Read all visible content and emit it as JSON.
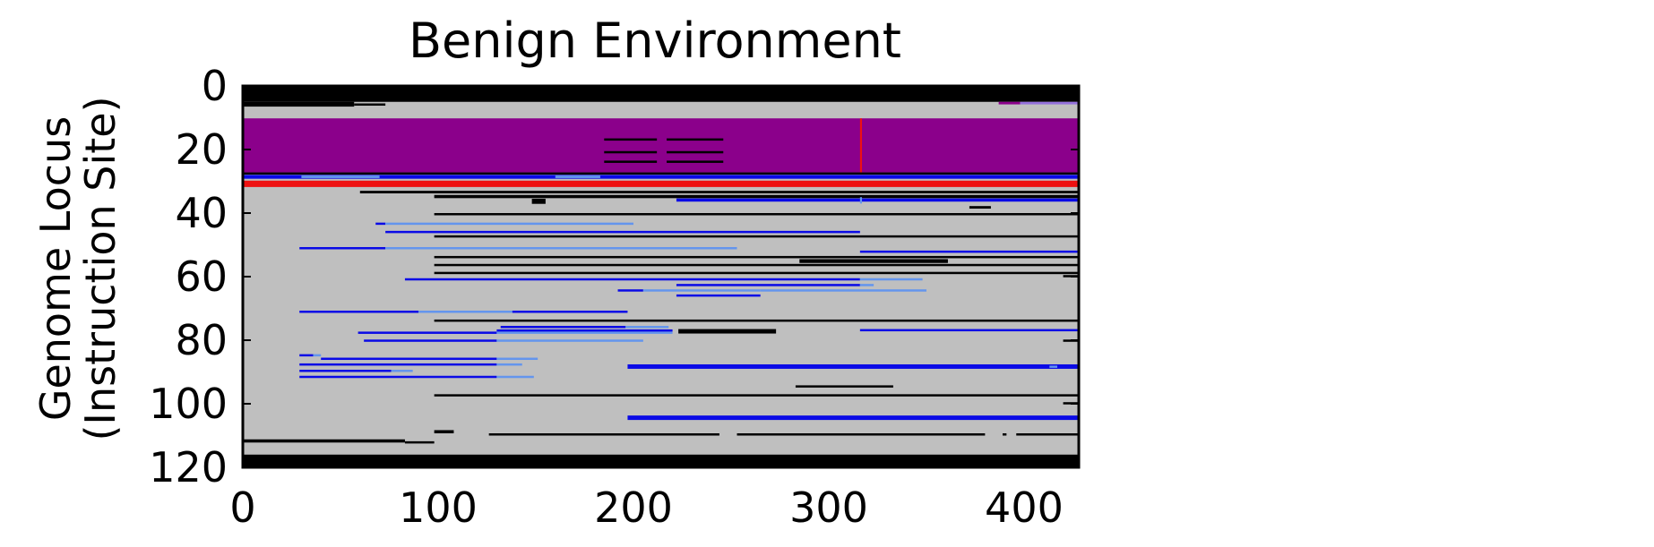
{
  "chart_data": {
    "type": "heatmap",
    "title": "Benign Environment",
    "ylabel_lines": [
      "Genome Locus",
      "(Instruction Site)"
    ],
    "xlabel": "",
    "xlim": [
      0,
      428
    ],
    "ylim": [
      120,
      0
    ],
    "y_inverted": true,
    "xticks": [
      "0",
      "100",
      "200",
      "300",
      "400"
    ],
    "xtick_values": [
      0,
      100,
      200,
      300,
      400
    ],
    "yticks": [
      "0",
      "20",
      "40",
      "60",
      "80",
      "100",
      "120"
    ],
    "ytick_values": [
      0,
      20,
      40,
      60,
      80,
      100,
      120
    ],
    "grid": false,
    "colors": {
      "background": "#bfbfbf",
      "black": "#000000",
      "purple": "#8b008b",
      "red": "#ee1111",
      "blue": "#0a0ae6",
      "lightblue": "#6495ed",
      "lightpurple": "#9370db"
    },
    "segments": [
      {
        "c": "black",
        "x0": 0,
        "x1": 428,
        "y": 0,
        "h": 5
      },
      {
        "c": "black",
        "x0": 0,
        "x1": 428,
        "y": 116,
        "h": 4
      },
      {
        "c": "black",
        "x0": 0,
        "x1": 57,
        "y": 5,
        "h": 1.5
      },
      {
        "c": "black",
        "x0": 57,
        "x1": 73,
        "y": 5.5,
        "h": 0.6
      },
      {
        "c": "black",
        "x0": 320,
        "x1": 428,
        "y": 1.5,
        "h": 0.6
      },
      {
        "c": "purple",
        "x0": 0,
        "x1": 428,
        "y": 10.2,
        "h": 17
      },
      {
        "c": "black",
        "x0": 185,
        "x1": 212,
        "y": 16.5,
        "h": 0.7
      },
      {
        "c": "black",
        "x0": 217,
        "x1": 246,
        "y": 16.5,
        "h": 0.7
      },
      {
        "c": "black",
        "x0": 185,
        "x1": 212,
        "y": 20.5,
        "h": 0.7
      },
      {
        "c": "black",
        "x0": 217,
        "x1": 246,
        "y": 20.5,
        "h": 0.7
      },
      {
        "c": "black",
        "x0": 185,
        "x1": 212,
        "y": 23.5,
        "h": 0.7
      },
      {
        "c": "black",
        "x0": 217,
        "x1": 246,
        "y": 23.5,
        "h": 0.7
      },
      {
        "c": "red",
        "x0": 316,
        "x1": 317,
        "y": 10.2,
        "h": 17
      },
      {
        "c": "purple",
        "x0": 387,
        "x1": 398,
        "y": 5,
        "h": 0.8
      },
      {
        "c": "lightpurple",
        "x0": 398,
        "x1": 428,
        "y": 5,
        "h": 0.8
      },
      {
        "c": "black",
        "x0": 0,
        "x1": 428,
        "y": 27.2,
        "h": 0.7
      },
      {
        "c": "blue",
        "x0": 0,
        "x1": 428,
        "y": 28,
        "h": 1.2
      },
      {
        "c": "lightblue",
        "x0": 30,
        "x1": 70,
        "y": 28.2,
        "h": 0.8
      },
      {
        "c": "lightblue",
        "x0": 160,
        "x1": 183,
        "y": 28.2,
        "h": 0.8
      },
      {
        "c": "red",
        "x0": 0,
        "x1": 428,
        "y": 29.8,
        "h": 2
      },
      {
        "c": "black",
        "x0": 60,
        "x1": 428,
        "y": 33,
        "h": 0.8
      },
      {
        "c": "black",
        "x0": 98,
        "x1": 428,
        "y": 34.3,
        "h": 1
      },
      {
        "c": "blue",
        "x0": 222,
        "x1": 428,
        "y": 35.4,
        "h": 1
      },
      {
        "c": "black",
        "x0": 148,
        "x1": 155,
        "y": 35.5,
        "h": 1.6
      },
      {
        "c": "black",
        "x0": 372,
        "x1": 383,
        "y": 37.8,
        "h": 0.8
      },
      {
        "c": "black",
        "x0": 98,
        "x1": 428,
        "y": 40,
        "h": 0.7
      },
      {
        "c": "blue",
        "x0": 68,
        "x1": 73,
        "y": 43,
        "h": 0.6
      },
      {
        "c": "lightblue",
        "x0": 73,
        "x1": 200,
        "y": 43,
        "h": 0.6
      },
      {
        "c": "blue",
        "x0": 73,
        "x1": 316,
        "y": 45.6,
        "h": 0.7
      },
      {
        "c": "black",
        "x0": 98,
        "x1": 428,
        "y": 47,
        "h": 0.7
      },
      {
        "c": "blue",
        "x0": 29,
        "x1": 73,
        "y": 50.7,
        "h": 0.7
      },
      {
        "c": "lightblue",
        "x0": 73,
        "x1": 253,
        "y": 50.7,
        "h": 0.7
      },
      {
        "c": "blue",
        "x0": 316,
        "x1": 428,
        "y": 51.8,
        "h": 0.7
      },
      {
        "c": "black",
        "x0": 98,
        "x1": 428,
        "y": 53.5,
        "h": 0.6
      },
      {
        "c": "black",
        "x0": 285,
        "x1": 361,
        "y": 54.5,
        "h": 1.2
      },
      {
        "c": "black",
        "x0": 98,
        "x1": 428,
        "y": 56,
        "h": 0.6
      },
      {
        "c": "black",
        "x0": 98,
        "x1": 428,
        "y": 58.5,
        "h": 0.6
      },
      {
        "c": "blue",
        "x0": 83,
        "x1": 316,
        "y": 60.5,
        "h": 0.7
      },
      {
        "c": "lightblue",
        "x0": 316,
        "x1": 348,
        "y": 60.5,
        "h": 0.7
      },
      {
        "c": "black",
        "x0": 420,
        "x1": 428,
        "y": 59.5,
        "h": 0.6
      },
      {
        "c": "blue",
        "x0": 222,
        "x1": 316,
        "y": 62.3,
        "h": 0.7
      },
      {
        "c": "lightblue",
        "x0": 316,
        "x1": 323,
        "y": 62.3,
        "h": 0.7
      },
      {
        "c": "blue",
        "x0": 192,
        "x1": 205,
        "y": 64,
        "h": 0.7
      },
      {
        "c": "lightblue",
        "x0": 205,
        "x1": 265,
        "y": 64,
        "h": 0.7
      },
      {
        "c": "lightblue",
        "x0": 265,
        "x1": 350,
        "y": 64,
        "h": 0.7
      },
      {
        "c": "blue",
        "x0": 222,
        "x1": 265,
        "y": 65.6,
        "h": 0.7
      },
      {
        "c": "blue",
        "x0": 29,
        "x1": 90,
        "y": 70.7,
        "h": 0.7
      },
      {
        "c": "lightblue",
        "x0": 90,
        "x1": 138,
        "y": 70.7,
        "h": 0.7
      },
      {
        "c": "blue",
        "x0": 138,
        "x1": 197,
        "y": 70.7,
        "h": 0.7
      },
      {
        "c": "black",
        "x0": 98,
        "x1": 428,
        "y": 73.5,
        "h": 0.6
      },
      {
        "c": "blue",
        "x0": 132,
        "x1": 196,
        "y": 75.5,
        "h": 0.7
      },
      {
        "c": "lightblue",
        "x0": 196,
        "x1": 218,
        "y": 75.5,
        "h": 0.7
      },
      {
        "c": "blue",
        "x0": 59,
        "x1": 130,
        "y": 77.3,
        "h": 0.7
      },
      {
        "c": "lightblue",
        "x0": 130,
        "x1": 220,
        "y": 77.3,
        "h": 0.7
      },
      {
        "c": "blue",
        "x0": 130,
        "x1": 220,
        "y": 76.6,
        "h": 0.6
      },
      {
        "c": "black",
        "x0": 223,
        "x1": 273,
        "y": 76.5,
        "h": 1.4
      },
      {
        "c": "blue",
        "x0": 316,
        "x1": 428,
        "y": 76.5,
        "h": 0.7
      },
      {
        "c": "blue",
        "x0": 62,
        "x1": 130,
        "y": 79.8,
        "h": 0.6
      },
      {
        "c": "lightblue",
        "x0": 130,
        "x1": 205,
        "y": 79.8,
        "h": 0.6
      },
      {
        "c": "black",
        "x0": 420,
        "x1": 428,
        "y": 79.8,
        "h": 0.6
      },
      {
        "c": "blue",
        "x0": 29,
        "x1": 36,
        "y": 84.4,
        "h": 0.6
      },
      {
        "c": "lightblue",
        "x0": 36,
        "x1": 40,
        "y": 84.4,
        "h": 0.6
      },
      {
        "c": "blue",
        "x0": 40,
        "x1": 130,
        "y": 85.5,
        "h": 0.7
      },
      {
        "c": "lightblue",
        "x0": 130,
        "x1": 151,
        "y": 85.5,
        "h": 0.7
      },
      {
        "c": "blue",
        "x0": 29,
        "x1": 130,
        "y": 87.3,
        "h": 0.7
      },
      {
        "c": "lightblue",
        "x0": 130,
        "x1": 143,
        "y": 87.3,
        "h": 0.7
      },
      {
        "c": "blue",
        "x0": 197,
        "x1": 428,
        "y": 87.6,
        "h": 1.4
      },
      {
        "c": "lightblue",
        "x0": 413,
        "x1": 417,
        "y": 88,
        "h": 0.7
      },
      {
        "c": "blue",
        "x0": 29,
        "x1": 76,
        "y": 89.3,
        "h": 0.7
      },
      {
        "c": "lightblue",
        "x0": 76,
        "x1": 87,
        "y": 89.3,
        "h": 0.7
      },
      {
        "c": "blue",
        "x0": 29,
        "x1": 130,
        "y": 91.2,
        "h": 0.7
      },
      {
        "c": "lightblue",
        "x0": 130,
        "x1": 149,
        "y": 91.2,
        "h": 0.7
      },
      {
        "c": "black",
        "x0": 283,
        "x1": 333,
        "y": 94.2,
        "h": 0.7
      },
      {
        "c": "black",
        "x0": 98,
        "x1": 428,
        "y": 97,
        "h": 0.6
      },
      {
        "c": "black",
        "x0": 420,
        "x1": 428,
        "y": 99.5,
        "h": 0.6
      },
      {
        "c": "blue",
        "x0": 197,
        "x1": 428,
        "y": 103.7,
        "h": 1.4
      },
      {
        "c": "black",
        "x0": 98,
        "x1": 108,
        "y": 108.3,
        "h": 1
      },
      {
        "c": "black",
        "x0": 126,
        "x1": 244,
        "y": 109.3,
        "h": 0.6
      },
      {
        "c": "black",
        "x0": 253,
        "x1": 380,
        "y": 109.3,
        "h": 0.6
      },
      {
        "c": "black",
        "x0": 389,
        "x1": 391,
        "y": 109.3,
        "h": 0.6
      },
      {
        "c": "black",
        "x0": 396,
        "x1": 428,
        "y": 109.3,
        "h": 0.6
      },
      {
        "c": "black",
        "x0": 0,
        "x1": 83,
        "y": 111.2,
        "h": 1
      },
      {
        "c": "black",
        "x0": 83,
        "x1": 98,
        "y": 111.8,
        "h": 0.6
      },
      {
        "c": "lightblue",
        "x0": 316,
        "x1": 317,
        "y": 35,
        "h": 2
      }
    ]
  }
}
